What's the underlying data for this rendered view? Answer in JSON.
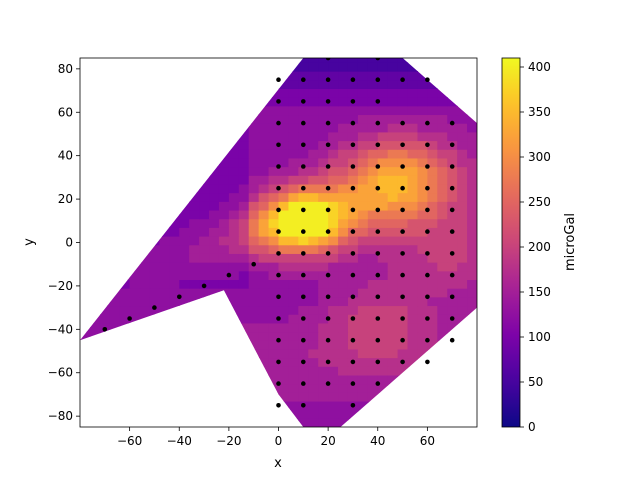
{
  "chart_data": {
    "type": "contour",
    "title": "",
    "xlabel": "x",
    "ylabel": "y",
    "xlim": [
      -80,
      80
    ],
    "ylim": [
      -85,
      85
    ],
    "xticks": [
      -60,
      -40,
      -20,
      0,
      20,
      40,
      60
    ],
    "yticks": [
      -80,
      -60,
      -40,
      -20,
      0,
      20,
      40,
      60,
      80
    ],
    "colorbar": {
      "label": "microGal",
      "colormap": "plasma",
      "range": [
        0,
        410
      ],
      "ticks": [
        0,
        50,
        100,
        150,
        200,
        250,
        300,
        350,
        400
      ]
    },
    "hull": [
      [
        -80,
        -45
      ],
      [
        -22,
        -22
      ],
      [
        0,
        -70
      ],
      [
        10,
        -85
      ],
      [
        25,
        -85
      ],
      [
        80,
        -30
      ],
      [
        80,
        55
      ],
      [
        60,
        75
      ],
      [
        50,
        85
      ],
      [
        10,
        85
      ],
      [
        -80,
        -45
      ]
    ],
    "field_peaks": [
      {
        "x": 10,
        "y": 10,
        "value": 400
      },
      {
        "x": 40,
        "y": 25,
        "value": 280
      },
      {
        "x": 55,
        "y": 30,
        "value": 260
      },
      {
        "x": 40,
        "y": -35,
        "value": 210
      },
      {
        "x": 70,
        "y": -5,
        "value": 210
      }
    ],
    "stations": [
      [
        0,
        75
      ],
      [
        10,
        75
      ],
      [
        20,
        75
      ],
      [
        30,
        75
      ],
      [
        40,
        75
      ],
      [
        50,
        75
      ],
      [
        60,
        75
      ],
      [
        0,
        65
      ],
      [
        10,
        65
      ],
      [
        20,
        65
      ],
      [
        30,
        65
      ],
      [
        40,
        65
      ],
      [
        0,
        55
      ],
      [
        10,
        55
      ],
      [
        20,
        55
      ],
      [
        30,
        55
      ],
      [
        40,
        55
      ],
      [
        50,
        55
      ],
      [
        60,
        55
      ],
      [
        70,
        55
      ],
      [
        0,
        45
      ],
      [
        10,
        45
      ],
      [
        20,
        45
      ],
      [
        30,
        45
      ],
      [
        40,
        45
      ],
      [
        50,
        45
      ],
      [
        60,
        45
      ],
      [
        70,
        45
      ],
      [
        0,
        35
      ],
      [
        10,
        35
      ],
      [
        20,
        35
      ],
      [
        30,
        35
      ],
      [
        40,
        35
      ],
      [
        50,
        35
      ],
      [
        60,
        35
      ],
      [
        70,
        35
      ],
      [
        0,
        25
      ],
      [
        10,
        25
      ],
      [
        20,
        25
      ],
      [
        30,
        25
      ],
      [
        40,
        25
      ],
      [
        50,
        25
      ],
      [
        60,
        25
      ],
      [
        70,
        25
      ],
      [
        0,
        15
      ],
      [
        10,
        15
      ],
      [
        20,
        15
      ],
      [
        30,
        15
      ],
      [
        40,
        15
      ],
      [
        50,
        15
      ],
      [
        60,
        15
      ],
      [
        70,
        15
      ],
      [
        0,
        5
      ],
      [
        10,
        5
      ],
      [
        20,
        5
      ],
      [
        30,
        5
      ],
      [
        40,
        5
      ],
      [
        50,
        5
      ],
      [
        60,
        5
      ],
      [
        70,
        5
      ],
      [
        0,
        -5
      ],
      [
        10,
        -5
      ],
      [
        20,
        -5
      ],
      [
        30,
        -5
      ],
      [
        40,
        -5
      ],
      [
        50,
        -5
      ],
      [
        60,
        -5
      ],
      [
        70,
        -5
      ],
      [
        0,
        -15
      ],
      [
        10,
        -15
      ],
      [
        20,
        -15
      ],
      [
        30,
        -15
      ],
      [
        40,
        -15
      ],
      [
        50,
        -15
      ],
      [
        60,
        -15
      ],
      [
        70,
        -15
      ],
      [
        0,
        -25
      ],
      [
        10,
        -25
      ],
      [
        20,
        -25
      ],
      [
        30,
        -25
      ],
      [
        40,
        -25
      ],
      [
        50,
        -25
      ],
      [
        60,
        -25
      ],
      [
        70,
        -25
      ],
      [
        0,
        -35
      ],
      [
        10,
        -35
      ],
      [
        20,
        -35
      ],
      [
        30,
        -35
      ],
      [
        40,
        -35
      ],
      [
        50,
        -35
      ],
      [
        60,
        -35
      ],
      [
        70,
        -35
      ],
      [
        0,
        -45
      ],
      [
        10,
        -45
      ],
      [
        20,
        -45
      ],
      [
        30,
        -45
      ],
      [
        40,
        -45
      ],
      [
        50,
        -45
      ],
      [
        60,
        -45
      ],
      [
        70,
        -45
      ],
      [
        0,
        -55
      ],
      [
        10,
        -55
      ],
      [
        20,
        -55
      ],
      [
        30,
        -55
      ],
      [
        40,
        -55
      ],
      [
        50,
        -55
      ],
      [
        60,
        -55
      ],
      [
        0,
        -65
      ],
      [
        10,
        -65
      ],
      [
        20,
        -65
      ],
      [
        30,
        -65
      ],
      [
        40,
        -65
      ],
      [
        0,
        -75
      ],
      [
        10,
        -75
      ],
      [
        30,
        -75
      ],
      [
        -10,
        -10
      ],
      [
        -20,
        -15
      ],
      [
        -30,
        -20
      ],
      [
        -40,
        -25
      ],
      [
        -50,
        -30
      ],
      [
        -60,
        -35
      ],
      [
        -70,
        -40
      ],
      [
        20,
        85
      ],
      [
        40,
        85
      ]
    ]
  }
}
